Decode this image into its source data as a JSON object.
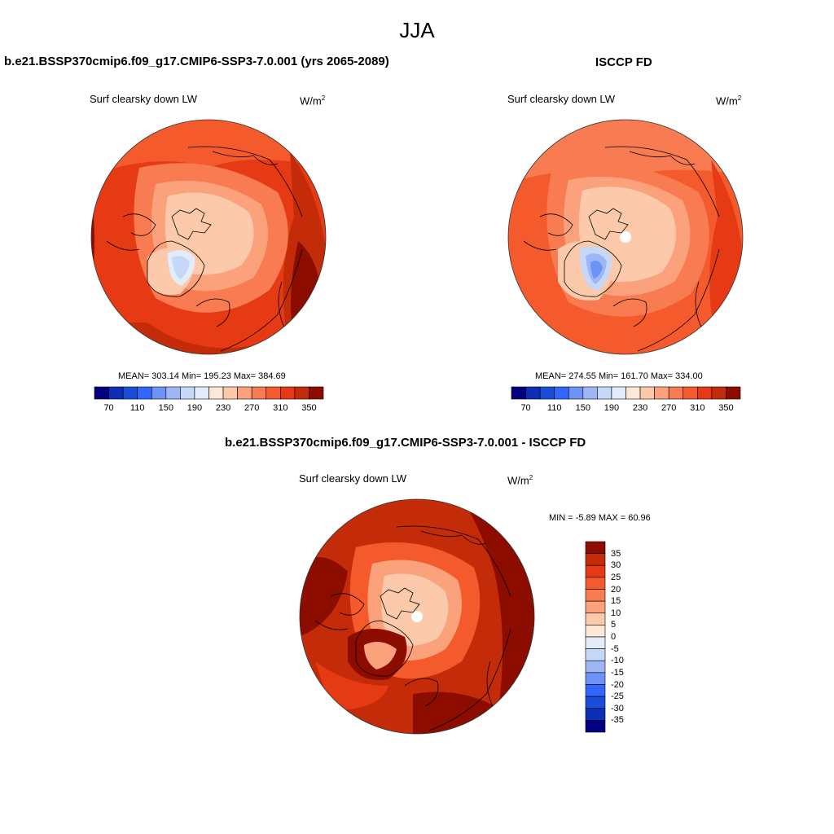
{
  "figure": {
    "title": "JJA"
  },
  "panels": {
    "model": {
      "title": "b.e21.BSSP370cmip6.f09_g17.CMIP6-SSP3-7.0.001 (yrs 2065-2089)",
      "variable": "Surf clearsky down LW",
      "units_base": "W/m",
      "units_exp": "2",
      "stats": "MEAN= 303.14  Min= 195.23  Max= 384.69"
    },
    "obs": {
      "title": "ISCCP FD",
      "variable": "Surf clearsky down LW",
      "units_base": "W/m",
      "units_exp": "2",
      "stats": "MEAN= 274.55  Min= 161.70  Max= 334.00"
    },
    "diff": {
      "title": "b.e21.BSSP370cmip6.f09_g17.CMIP6-SSP3-7.0.001 - ISCCP FD",
      "variable": "Surf clearsky down LW",
      "units_base": "W/m",
      "units_exp": "2",
      "stats": "MIN =  -5.89 MAX =  60.96"
    }
  },
  "colorbars": {
    "absolute": {
      "colors": [
        "#000080",
        "#0d2fb5",
        "#1a4ed8",
        "#3366ff",
        "#6e93f7",
        "#9db7f6",
        "#c5d8f7",
        "#e2ecfa",
        "#fde8d8",
        "#fcc9aa",
        "#fba27c",
        "#f87b52",
        "#f55a2c",
        "#e53a14",
        "#c42b08",
        "#8c0d00"
      ],
      "tick_labels": [
        "70",
        "110",
        "150",
        "190",
        "230",
        "270",
        "310",
        "350"
      ]
    },
    "difference": {
      "colors": [
        "#8c0d00",
        "#c42b08",
        "#e53a14",
        "#f55a2c",
        "#f87b52",
        "#fba27c",
        "#fcc9aa",
        "#fde8d8",
        "#e2ecfa",
        "#c5d8f7",
        "#9db7f6",
        "#6e93f7",
        "#3366ff",
        "#1a4ed8",
        "#0d2fb5",
        "#000080"
      ],
      "tick_labels": [
        "35",
        "30",
        "25",
        "20",
        "15",
        "10",
        "5",
        "0",
        "-5",
        "-10",
        "-15",
        "-20",
        "-25",
        "-30",
        "-35"
      ]
    }
  }
}
